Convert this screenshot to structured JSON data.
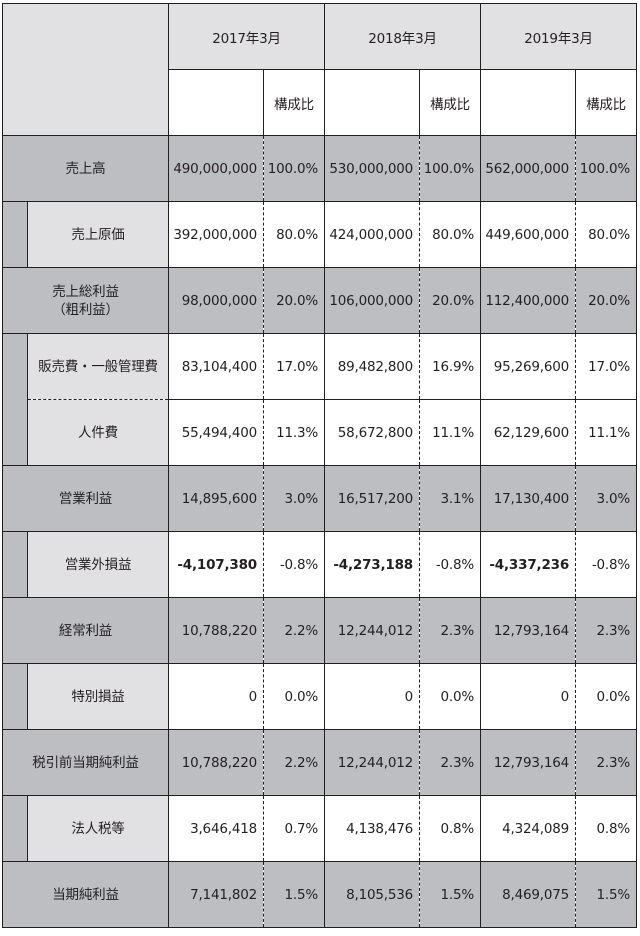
{
  "header": {
    "years": [
      "2017年3月",
      "2018年3月",
      "2019年3月"
    ],
    "ratio_label": "構成比"
  },
  "rows": [
    {
      "label": "売上高",
      "type": "major",
      "v": [
        "490,000,000",
        "100.0%",
        "530,000,000",
        "100.0%",
        "562,000,000",
        "100.0%"
      ]
    },
    {
      "label": "売上原価",
      "type": "minor",
      "v": [
        "392,000,000",
        "80.0%",
        "424,000,000",
        "80.0%",
        "449,600,000",
        "80.0%"
      ]
    },
    {
      "label": "売上総利益",
      "label2": "（粗利益）",
      "type": "major",
      "v": [
        "98,000,000",
        "20.0%",
        "106,000,000",
        "20.0%",
        "112,400,000",
        "20.0%"
      ]
    },
    {
      "label": "販売費・一般管理費",
      "type": "minor",
      "v": [
        "83,104,400",
        "17.0%",
        "89,482,800",
        "16.9%",
        "95,269,600",
        "17.0%"
      ]
    },
    {
      "label": "人件費",
      "type": "minor",
      "v": [
        "55,494,400",
        "11.3%",
        "58,672,800",
        "11.1%",
        "62,129,600",
        "11.1%"
      ]
    },
    {
      "label": "営業利益",
      "type": "major",
      "v": [
        "14,895,600",
        "3.0%",
        "16,517,200",
        "3.1%",
        "17,130,400",
        "3.0%"
      ]
    },
    {
      "label": "営業外損益",
      "type": "minor",
      "v": [
        "-4,107,380",
        "-0.8%",
        "-4,273,188",
        "-0.8%",
        "-4,337,236",
        "-0.8%"
      ]
    },
    {
      "label": "経常利益",
      "type": "major",
      "v": [
        "10,788,220",
        "2.2%",
        "12,244,012",
        "2.3%",
        "12,793,164",
        "2.3%"
      ]
    },
    {
      "label": "特別損益",
      "type": "minor",
      "v": [
        "0",
        "0.0%",
        "0",
        "0.0%",
        "0",
        "0.0%"
      ]
    },
    {
      "label": "税引前当期純利益",
      "type": "major",
      "v": [
        "10,788,220",
        "2.2%",
        "12,244,012",
        "2.3%",
        "12,793,164",
        "2.3%"
      ]
    },
    {
      "label": "法人税等",
      "type": "minor",
      "v": [
        "3,646,418",
        "0.7%",
        "4,138,476",
        "0.8%",
        "4,324,089",
        "0.8%"
      ]
    },
    {
      "label": "当期純利益",
      "type": "major",
      "v": [
        "7,141,802",
        "1.5%",
        "8,105,536",
        "1.5%",
        "8,469,075",
        "1.5%"
      ]
    }
  ]
}
